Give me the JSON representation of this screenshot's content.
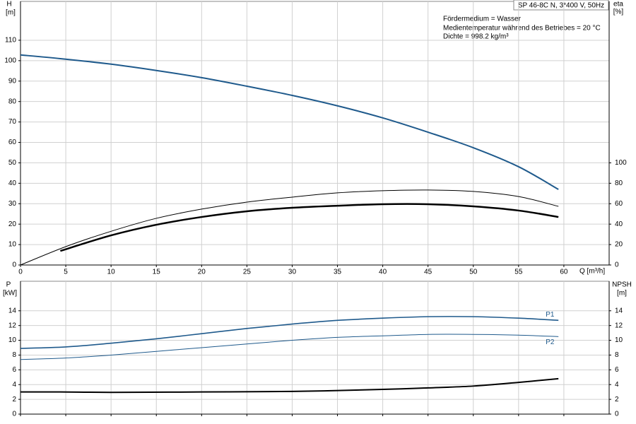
{
  "chart_data": [
    {
      "type": "line",
      "title": "SP 46-8C N, 3*400 V, 50Hz",
      "annotations": [
        "Fördermedium = Wasser",
        "Medientemperatur während des Betriebes = 20 °C",
        "Dichte = 998.2 kg/m³"
      ],
      "y_label": "H",
      "y_unit": "[m]",
      "y2_label": "eta",
      "y2_unit": "[%]",
      "x_label": "Q [m³/h]",
      "xlim": [
        0,
        65
      ],
      "xticks": [
        0,
        5,
        10,
        15,
        20,
        25,
        30,
        35,
        40,
        45,
        50,
        55,
        60
      ],
      "ylim": [
        0,
        129
      ],
      "yticks": [
        0,
        10,
        20,
        30,
        40,
        50,
        60,
        70,
        80,
        90,
        100,
        110
      ],
      "y2lim": [
        0,
        258
      ],
      "y2ticks": [
        0,
        20,
        40,
        60,
        80,
        100
      ],
      "grid": true,
      "series": [
        {
          "color": "#1f5a8c",
          "width": 2,
          "x": [
            0,
            4.4,
            10,
            15,
            20,
            25,
            30,
            35,
            40,
            45,
            50,
            55,
            59.4
          ],
          "values": [
            102.8,
            101,
            98.3,
            95.2,
            91.7,
            87.5,
            83,
            77.9,
            72,
            65,
            57.4,
            48.1,
            37
          ]
        },
        {
          "color": "#000000",
          "width": 1,
          "axis": "y2",
          "x": [
            0,
            5,
            10,
            15,
            20,
            25,
            30,
            35,
            40,
            45,
            50,
            55,
            59.4
          ],
          "values": [
            0,
            18,
            33,
            45.7,
            54.7,
            61.6,
            66.4,
            70.6,
            72.7,
            73.4,
            72,
            67,
            57.4
          ]
        },
        {
          "color": "#000000",
          "width": 2.5,
          "axis": "y2",
          "x": [
            4.4,
            10,
            15,
            20,
            25,
            30,
            35,
            40,
            45,
            50,
            55,
            59.4
          ],
          "values": [
            13.8,
            29,
            39.4,
            47,
            52.6,
            56,
            58,
            59.5,
            59.5,
            57.4,
            53.3,
            47
          ]
        }
      ]
    },
    {
      "type": "line",
      "y_label": "P",
      "y_unit": "[kW]",
      "y2_label": "NPSH",
      "y2_unit": "[m]",
      "xlim": [
        0,
        65
      ],
      "ylim": [
        0,
        18
      ],
      "yticks": [
        0,
        2,
        4,
        6,
        8,
        10,
        12,
        14
      ],
      "y2lim": [
        0,
        18
      ],
      "y2ticks": [
        0,
        2,
        4,
        6,
        8,
        10,
        12,
        14
      ],
      "grid": true,
      "series": [
        {
          "name": "P1",
          "color": "#1f5a8c",
          "width": 1.6,
          "x": [
            0,
            5,
            10,
            15,
            20,
            25,
            30,
            35,
            40,
            45,
            50,
            55,
            59.4
          ],
          "values": [
            8.9,
            9.1,
            9.6,
            10.2,
            10.9,
            11.6,
            12.2,
            12.7,
            13.0,
            13.2,
            13.2,
            13.0,
            12.7
          ]
        },
        {
          "name": "P2",
          "color": "#1f5a8c",
          "width": 1,
          "x": [
            0,
            5,
            10,
            15,
            20,
            25,
            30,
            35,
            40,
            45,
            50,
            55,
            59.4
          ],
          "values": [
            7.4,
            7.6,
            8.0,
            8.5,
            9.0,
            9.5,
            10.0,
            10.4,
            10.6,
            10.8,
            10.8,
            10.7,
            10.5
          ]
        },
        {
          "color": "#000000",
          "width": 2,
          "axis": "y2",
          "x": [
            0,
            4.4,
            10,
            20,
            30,
            40,
            45,
            50,
            55,
            59.4
          ],
          "values": [
            3.0,
            3.0,
            2.95,
            3.0,
            3.07,
            3.35,
            3.55,
            3.8,
            4.3,
            4.8
          ]
        }
      ]
    }
  ]
}
